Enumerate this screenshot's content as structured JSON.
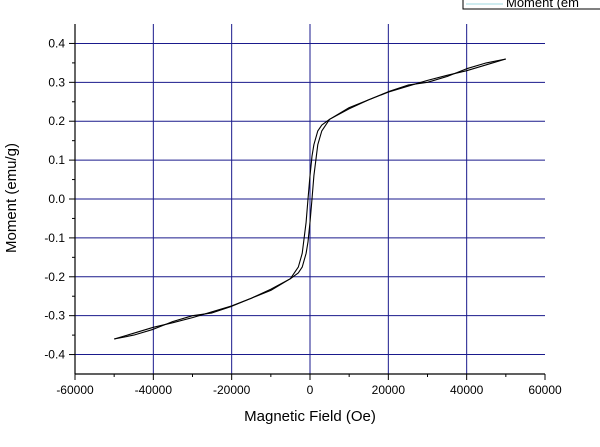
{
  "chart_data": {
    "type": "line",
    "title": "",
    "xlabel": "Magnetic Field (Oe)",
    "ylabel": "Moment (emu/g)",
    "xlim": [
      -60000,
      60000
    ],
    "ylim": [
      -0.45,
      0.45
    ],
    "x_ticks": [
      -60000,
      -40000,
      -20000,
      0,
      20000,
      40000,
      60000
    ],
    "x_tick_labels": [
      "-60000",
      "-40000",
      "-20000",
      "0",
      "20000",
      "40000",
      "60000"
    ],
    "y_ticks": [
      -0.4,
      -0.3,
      -0.2,
      -0.1,
      0.0,
      0.1,
      0.2,
      0.3,
      0.4
    ],
    "y_tick_labels": [
      "-0.4",
      "-0.3",
      "-0.2",
      "-0.1",
      "0.0",
      "0.1",
      "0.2",
      "0.3",
      "0.4"
    ],
    "grid": true,
    "grid_color": "#1a1a8c",
    "line_color": "#000000",
    "legend": {
      "placement": "top-right (clipped)",
      "entries": [
        "Moment (emu/g)"
      ],
      "visible_text": "Moment (em"
    },
    "series": [
      {
        "x": [
          -50000,
          -45000,
          -40000,
          -35000,
          -30000,
          -25000,
          -20000,
          -15000,
          -10000,
          -5000,
          -3000,
          -2000,
          -1000,
          -500,
          0,
          500,
          1000,
          2000,
          3000,
          5000,
          10000,
          15000,
          20000,
          25000,
          30000,
          35000,
          40000,
          45000,
          50000
        ],
        "values": [
          -0.36,
          -0.35,
          -0.335,
          -0.315,
          -0.3,
          -0.293,
          -0.276,
          -0.255,
          -0.232,
          -0.205,
          -0.19,
          -0.175,
          -0.14,
          -0.11,
          -0.06,
          0.0,
          0.06,
          0.14,
          0.175,
          0.205,
          0.235,
          0.255,
          0.275,
          0.29,
          0.305,
          0.318,
          0.33,
          0.345,
          0.36
        ]
      },
      {
        "x": [
          50000,
          45000,
          40000,
          35000,
          30000,
          25000,
          20000,
          15000,
          10000,
          5000,
          3000,
          2000,
          1000,
          500,
          0,
          -500,
          -1000,
          -2000,
          -3000,
          -5000,
          -10000,
          -15000,
          -20000,
          -25000,
          -30000,
          -35000,
          -40000,
          -45000,
          -50000
        ],
        "values": [
          0.36,
          0.35,
          0.335,
          0.315,
          0.3,
          0.293,
          0.276,
          0.255,
          0.232,
          0.205,
          0.19,
          0.175,
          0.14,
          0.11,
          0.06,
          0.0,
          -0.06,
          -0.14,
          -0.175,
          -0.205,
          -0.235,
          -0.255,
          -0.275,
          -0.29,
          -0.305,
          -0.318,
          -0.33,
          -0.345,
          -0.36
        ]
      }
    ]
  }
}
